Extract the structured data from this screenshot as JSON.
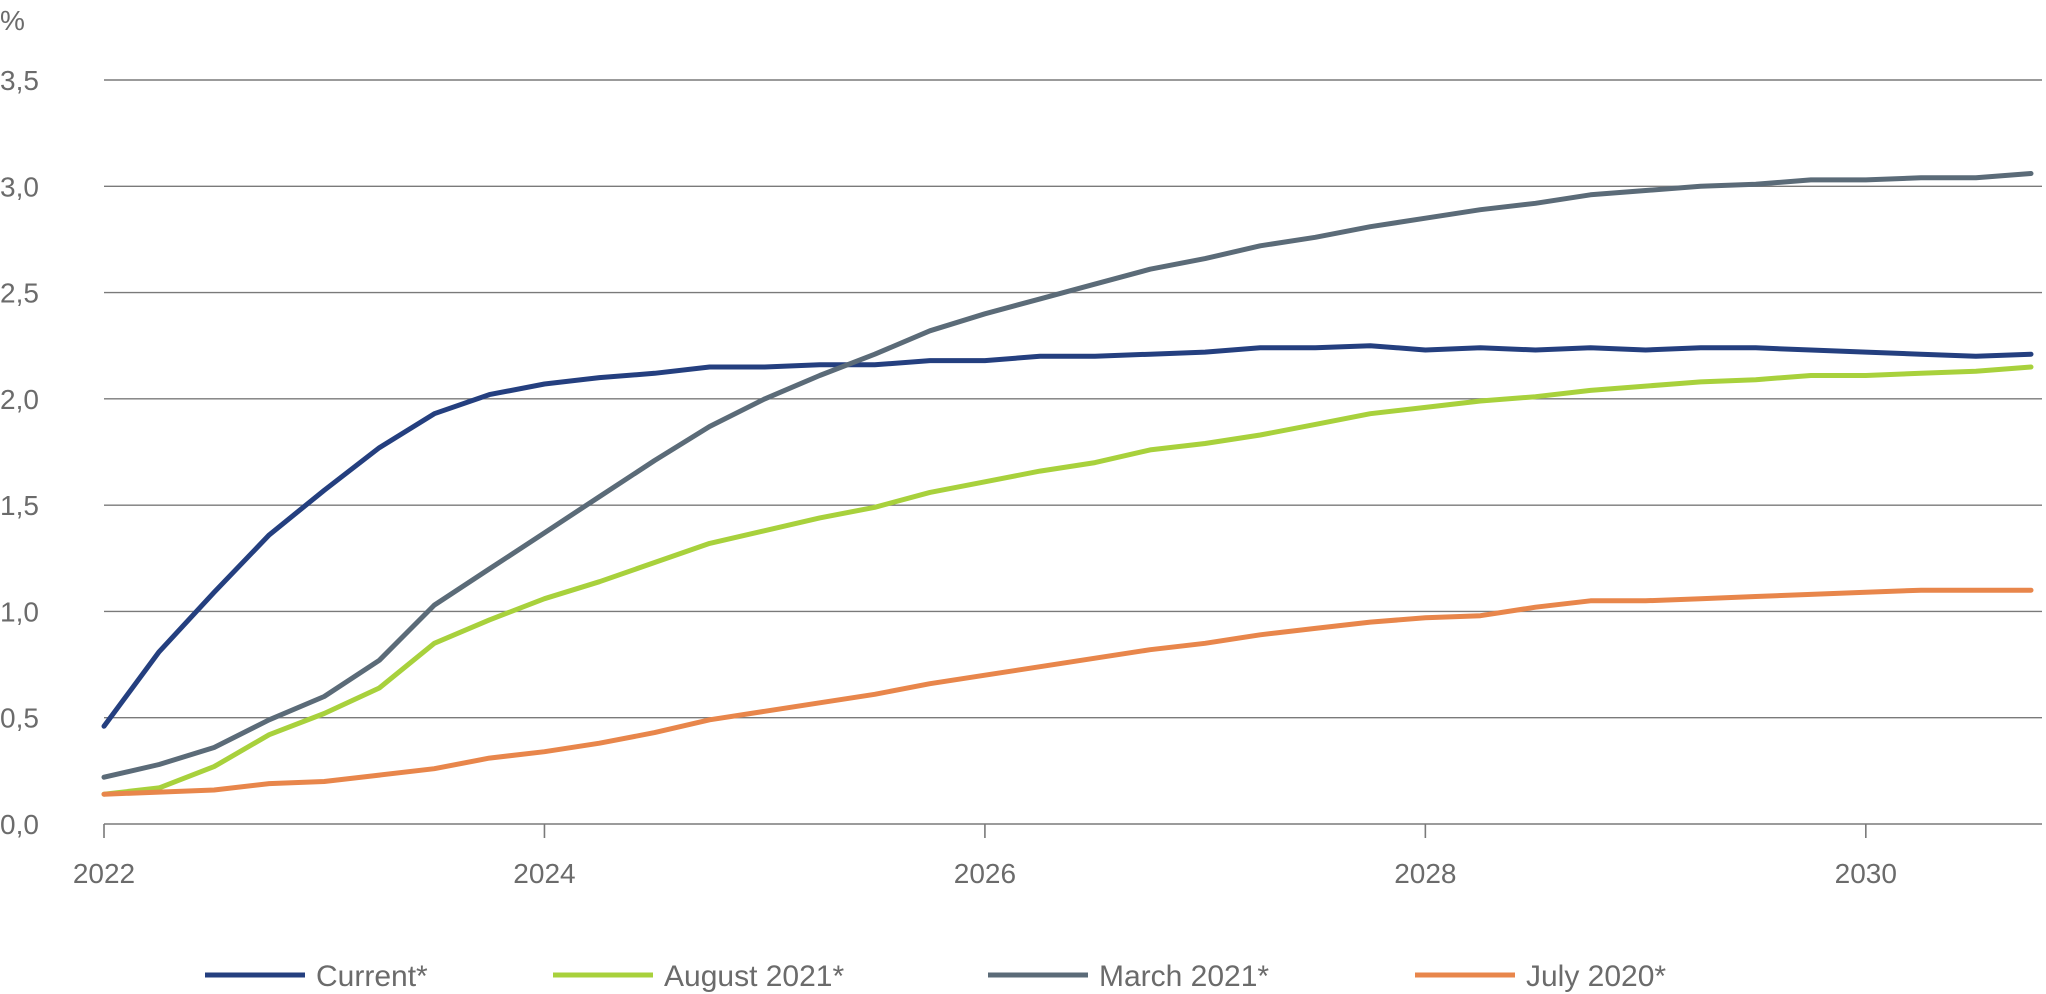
{
  "chart_data": {
    "type": "line",
    "title": "",
    "xlabel": "",
    "ylabel": "%",
    "x_ticks": [
      "2022",
      "2024",
      "2026",
      "2028",
      "2030"
    ],
    "y_ticks": [
      "0,0",
      "0,5",
      "1,0",
      "1,5",
      "2,0",
      "2,5",
      "3,0",
      "3,5"
    ],
    "xlim": [
      2022,
      2030.8
    ],
    "ylim": [
      0,
      3.5
    ],
    "grid": "horizontal",
    "legend_position": "bottom",
    "x": [
      2022.0,
      2022.25,
      2022.5,
      2022.75,
      2023.0,
      2023.25,
      2023.5,
      2023.75,
      2024.0,
      2024.25,
      2024.5,
      2024.75,
      2025.0,
      2025.25,
      2025.5,
      2025.75,
      2026.0,
      2026.25,
      2026.5,
      2026.75,
      2027.0,
      2027.25,
      2027.5,
      2027.75,
      2028.0,
      2028.25,
      2028.5,
      2028.75,
      2029.0,
      2029.25,
      2029.5,
      2029.75,
      2030.0,
      2030.25,
      2030.5,
      2030.75
    ],
    "series": [
      {
        "name": "Current*",
        "color": "#243f7f",
        "values": [
          0.46,
          0.81,
          1.09,
          1.36,
          1.57,
          1.77,
          1.93,
          2.02,
          2.07,
          2.1,
          2.12,
          2.15,
          2.15,
          2.16,
          2.16,
          2.18,
          2.18,
          2.2,
          2.2,
          2.21,
          2.22,
          2.24,
          2.24,
          2.25,
          2.23,
          2.24,
          2.23,
          2.24,
          2.23,
          2.24,
          2.24,
          2.23,
          2.22,
          2.21,
          2.2,
          2.21
        ]
      },
      {
        "name": "August 2021*",
        "color": "#a8d13c",
        "values": [
          0.14,
          0.17,
          0.27,
          0.42,
          0.52,
          0.64,
          0.85,
          0.96,
          1.06,
          1.14,
          1.23,
          1.32,
          1.38,
          1.44,
          1.49,
          1.56,
          1.61,
          1.66,
          1.7,
          1.76,
          1.79,
          1.83,
          1.88,
          1.93,
          1.96,
          1.99,
          2.01,
          2.04,
          2.06,
          2.08,
          2.09,
          2.11,
          2.11,
          2.12,
          2.13,
          2.15
        ]
      },
      {
        "name": "March 2021*",
        "color": "#5b6b78",
        "values": [
          0.22,
          0.28,
          0.36,
          0.49,
          0.6,
          0.77,
          1.03,
          1.2,
          1.37,
          1.54,
          1.71,
          1.87,
          2.0,
          2.11,
          2.21,
          2.32,
          2.4,
          2.47,
          2.54,
          2.61,
          2.66,
          2.72,
          2.76,
          2.81,
          2.85,
          2.89,
          2.92,
          2.96,
          2.98,
          3.0,
          3.01,
          3.03,
          3.03,
          3.04,
          3.04,
          3.06
        ]
      },
      {
        "name": "July 2020*",
        "color": "#e8864b",
        "values": [
          0.14,
          0.15,
          0.16,
          0.19,
          0.2,
          0.23,
          0.26,
          0.31,
          0.34,
          0.38,
          0.43,
          0.49,
          0.53,
          0.57,
          0.61,
          0.66,
          0.7,
          0.74,
          0.78,
          0.82,
          0.85,
          0.89,
          0.92,
          0.95,
          0.97,
          0.98,
          1.02,
          1.05,
          1.05,
          1.06,
          1.07,
          1.08,
          1.09,
          1.1,
          1.1,
          1.1
        ]
      }
    ]
  }
}
